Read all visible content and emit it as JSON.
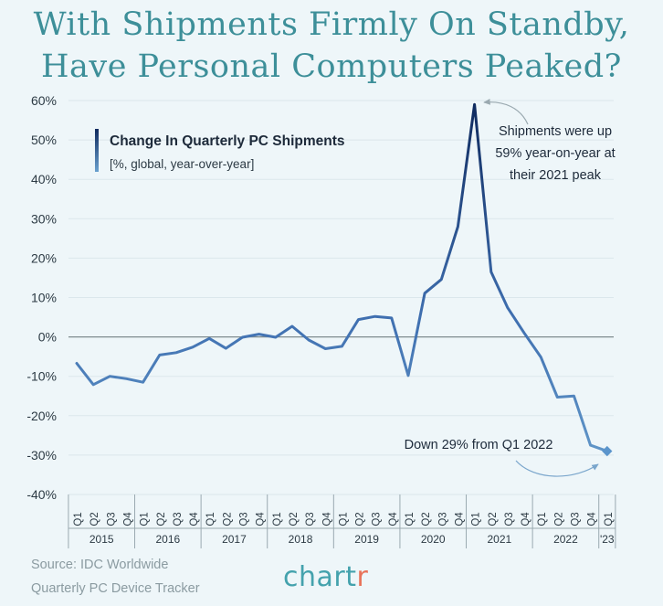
{
  "title": {
    "line1": "With Shipments Firmly On Standby,",
    "line2": "Have Personal Computers Peaked?"
  },
  "chart_data": {
    "type": "line",
    "title": "Change In Quarterly PC Shipments",
    "subtitle": "[%, global, year-over-year]",
    "ylim": [
      -40,
      60
    ],
    "yticks": [
      -40,
      -30,
      -20,
      -10,
      0,
      10,
      20,
      30,
      40,
      50,
      60
    ],
    "ytick_labels": [
      "-40%",
      "-30%",
      "-20%",
      "-10%",
      "0%",
      "10%",
      "20%",
      "30%",
      "40%",
      "50%",
      "60%"
    ],
    "quarters": [
      "Q1",
      "Q2",
      "Q3",
      "Q4",
      "Q1",
      "Q2",
      "Q3",
      "Q4",
      "Q1",
      "Q2",
      "Q3",
      "Q4",
      "Q1",
      "Q2",
      "Q3",
      "Q4",
      "Q1",
      "Q2",
      "Q3",
      "Q4",
      "Q1",
      "Q2",
      "Q3",
      "Q4",
      "Q1",
      "Q2",
      "Q3",
      "Q4",
      "Q1",
      "Q2",
      "Q3",
      "Q4",
      "Q1"
    ],
    "years": [
      "2015",
      "2016",
      "2017",
      "2018",
      "2019",
      "2020",
      "2021",
      "2022",
      "'23"
    ],
    "values": [
      -6.7,
      -12.1,
      -10.0,
      -10.6,
      -11.5,
      -4.6,
      -4.0,
      -2.6,
      -0.4,
      -2.9,
      -0.1,
      0.7,
      -0.1,
      2.7,
      -0.8,
      -3.0,
      -2.4,
      4.4,
      5.2,
      4.8,
      -9.8,
      11.1,
      14.6,
      28.0,
      59.0,
      16.5,
      7.4,
      1.0,
      -5.1,
      -15.3,
      -15.0,
      -27.5,
      -29.0
    ],
    "grid": true,
    "colors": {
      "low": "#6aa1cf",
      "high": "#0f2a5e",
      "zero_line": "#7f8c90",
      "marker": "#5b95cc"
    },
    "annotations": {
      "peak": [
        "Shipments were up",
        "59% year-on-year at",
        "their 2021 peak"
      ],
      "latest": "Down 29% from Q1 2022"
    }
  },
  "footer": {
    "source_line1": "Source: IDC Worldwide",
    "source_line2": "Quarterly PC Device Tracker",
    "logo_main": "chart",
    "logo_tail": "r"
  }
}
